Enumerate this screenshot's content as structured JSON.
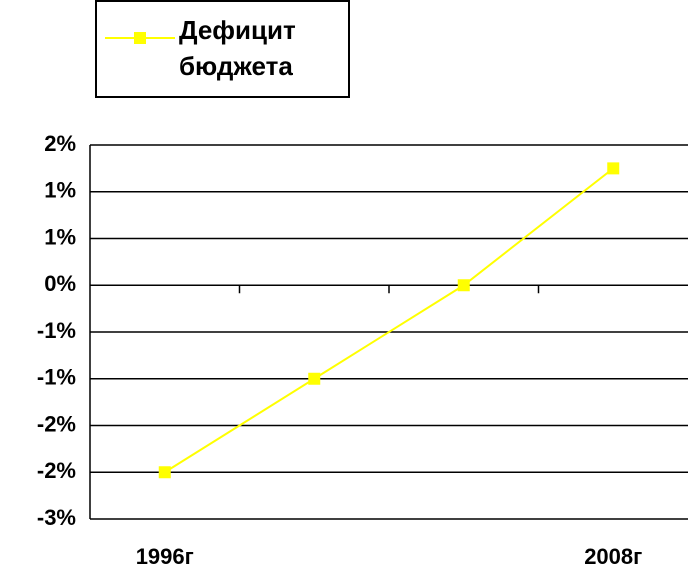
{
  "chart_data": {
    "type": "line",
    "categories": [
      "1996г",
      null,
      null,
      "2008г"
    ],
    "series": [
      {
        "name": "Дефицит бюджета",
        "color": "#ffff00",
        "values": [
          -2.0,
          -1.0,
          0.0,
          1.25
        ]
      }
    ],
    "ylim": [
      -2.5,
      1.5
    ],
    "yticks": [
      {
        "value": -2.5,
        "label": "-3%"
      },
      {
        "value": -2.0,
        "label": "-2%"
      },
      {
        "value": -1.5,
        "label": "-2%"
      },
      {
        "value": -1.0,
        "label": "-1%"
      },
      {
        "value": -0.5,
        "label": "-1%"
      },
      {
        "value": 0,
        "label": "0%"
      },
      {
        "value": 0.5,
        "label": "1%"
      },
      {
        "value": 1.0,
        "label": "1%"
      },
      {
        "value": 1.5,
        "label": "2%"
      }
    ],
    "grid": true,
    "legend": "top-left"
  }
}
